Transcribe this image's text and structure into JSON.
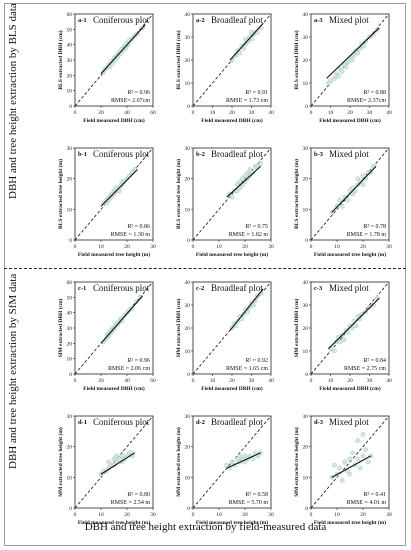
{
  "figure": {
    "side_label_top": "DBH and tree height extraction by BLS data",
    "side_label_bottom": "DBH and tree height extraction by SfM data",
    "bottom_label": "DBH and tree height extraction by field-measured data"
  },
  "chart_data": [
    {
      "id": "a-1",
      "type": "scatter",
      "title": "Coniferous plot",
      "xlabel": "Field measured DBH (cm)",
      "ylabel": "BLS extracted DBH (cm)",
      "xlim": [
        0,
        60
      ],
      "ylim": [
        0,
        60
      ],
      "xticks": [
        0,
        20,
        40,
        60
      ],
      "yticks": [
        0,
        10,
        20,
        30,
        40,
        50,
        60
      ],
      "r2_label": "R² = 0.96",
      "rmse_label": "RMSE= 2.07cm",
      "points": [
        [
          22,
          22
        ],
        [
          23,
          24
        ],
        [
          25,
          25
        ],
        [
          26,
          27
        ],
        [
          27,
          26
        ],
        [
          28,
          29
        ],
        [
          29,
          28
        ],
        [
          30,
          31
        ],
        [
          31,
          30
        ],
        [
          32,
          33
        ],
        [
          33,
          32
        ],
        [
          34,
          35
        ],
        [
          35,
          34
        ],
        [
          36,
          37
        ],
        [
          37,
          36
        ],
        [
          38,
          39
        ],
        [
          39,
          38
        ],
        [
          40,
          41
        ],
        [
          41,
          40
        ],
        [
          42,
          43
        ],
        [
          44,
          44
        ],
        [
          46,
          46
        ],
        [
          48,
          47
        ],
        [
          52,
          51
        ]
      ],
      "fit": [
        [
          20,
          21
        ],
        [
          54,
          53
        ]
      ]
    },
    {
      "id": "a-2",
      "type": "scatter",
      "title": "Broadleaf plot",
      "xlabel": "Field measured DBH (cm)",
      "ylabel": "BLS extracted DBH (cm)",
      "xlim": [
        0,
        40
      ],
      "ylim": [
        0,
        40
      ],
      "xticks": [
        0,
        10,
        20,
        30,
        40
      ],
      "yticks": [
        0,
        10,
        20,
        30,
        40
      ],
      "r2_label": "R² = 0.91",
      "rmse_label": "RMSE = 1.73 cm",
      "points": [
        [
          20,
          20
        ],
        [
          22,
          22
        ],
        [
          23,
          24
        ],
        [
          24,
          23
        ],
        [
          25,
          26
        ],
        [
          26,
          25
        ],
        [
          27,
          27
        ],
        [
          28,
          28
        ],
        [
          29,
          30
        ],
        [
          30,
          29
        ],
        [
          31,
          31
        ],
        [
          32,
          32
        ],
        [
          33,
          32
        ],
        [
          35,
          34
        ],
        [
          30,
          32
        ],
        [
          27,
          29
        ]
      ],
      "fit": [
        [
          19,
          20
        ],
        [
          36,
          36
        ]
      ]
    },
    {
      "id": "a-3",
      "type": "scatter",
      "title": "Mixed plot",
      "xlabel": "Field measured DBH (cm)",
      "ylabel": "BLS extracted DBH (cm)",
      "xlim": [
        0,
        40
      ],
      "ylim": [
        0,
        40
      ],
      "xticks": [
        0,
        10,
        20,
        30,
        40
      ],
      "yticks": [
        0,
        10,
        20,
        30,
        40
      ],
      "r2_label": "R² = 0.88",
      "rmse_label": "RMSE= 2.37cm",
      "points": [
        [
          9,
          10
        ],
        [
          10,
          11
        ],
        [
          12,
          12
        ],
        [
          13,
          14
        ],
        [
          14,
          13
        ],
        [
          15,
          16
        ],
        [
          16,
          15
        ],
        [
          17,
          18
        ],
        [
          18,
          17
        ],
        [
          19,
          19
        ],
        [
          20,
          21
        ],
        [
          21,
          20
        ],
        [
          22,
          22
        ],
        [
          23,
          24
        ],
        [
          24,
          23
        ],
        [
          25,
          25
        ],
        [
          26,
          27
        ],
        [
          27,
          26
        ],
        [
          28,
          28
        ],
        [
          30,
          30
        ],
        [
          32,
          31
        ],
        [
          34,
          33
        ]
      ],
      "fit": [
        [
          8,
          12
        ],
        [
          35,
          34
        ]
      ]
    },
    {
      "id": "b-1",
      "type": "scatter",
      "title": "Coniferous plot",
      "xlabel": "Field measured tree height (m)",
      "ylabel": "BLS extracted tree height (m)",
      "xlim": [
        0,
        30
      ],
      "ylim": [
        0,
        30
      ],
      "xticks": [
        0,
        10,
        20,
        30
      ],
      "yticks": [
        0,
        10,
        20,
        30
      ],
      "r2_label": "R² = 0.86",
      "rmse_label": "RMSE = 1.30 m",
      "points": [
        [
          11,
          12
        ],
        [
          12,
          12
        ],
        [
          12,
          13
        ],
        [
          13,
          13
        ],
        [
          13,
          14
        ],
        [
          14,
          14
        ],
        [
          14,
          15
        ],
        [
          15,
          15
        ],
        [
          15,
          16
        ],
        [
          16,
          16
        ],
        [
          16,
          17
        ],
        [
          17,
          17
        ],
        [
          17,
          16
        ],
        [
          18,
          18
        ],
        [
          18,
          19
        ],
        [
          19,
          19
        ],
        [
          20,
          20
        ],
        [
          21,
          21
        ],
        [
          22,
          22
        ],
        [
          23,
          23
        ]
      ],
      "fit": [
        [
          10,
          11
        ],
        [
          24,
          23
        ]
      ]
    },
    {
      "id": "b-2",
      "type": "scatter",
      "title": "Broadleaf plot",
      "xlabel": "Field measured tree height (m)",
      "ylabel": "BLS extracted tree height (m)",
      "xlim": [
        0,
        30
      ],
      "ylim": [
        0,
        30
      ],
      "xticks": [
        0,
        10,
        20,
        30
      ],
      "yticks": [
        0,
        10,
        20,
        30
      ],
      "r2_label": "R² = 0.75",
      "rmse_label": "RMSE = 1.82 m",
      "points": [
        [
          14,
          15
        ],
        [
          15,
          14
        ],
        [
          16,
          16
        ],
        [
          17,
          16
        ],
        [
          17,
          18
        ],
        [
          18,
          17
        ],
        [
          18,
          19
        ],
        [
          19,
          18
        ],
        [
          19,
          20
        ],
        [
          20,
          19
        ],
        [
          20,
          21
        ],
        [
          21,
          20
        ],
        [
          21,
          22
        ],
        [
          22,
          21
        ],
        [
          22,
          23
        ],
        [
          23,
          22
        ],
        [
          24,
          24
        ],
        [
          25,
          24
        ],
        [
          26,
          25
        ]
      ],
      "fit": [
        [
          13,
          14
        ],
        [
          26,
          24
        ]
      ]
    },
    {
      "id": "b-3",
      "type": "scatter",
      "title": "Mixed plot",
      "xlabel": "Field measured tree height (m)",
      "ylabel": "BLS extracted tree height (m)",
      "xlim": [
        0,
        30
      ],
      "ylim": [
        0,
        30
      ],
      "xticks": [
        0,
        10,
        20,
        30
      ],
      "yticks": [
        0,
        10,
        20,
        30
      ],
      "r2_label": "R² = 0.78",
      "rmse_label": "RMSE = 1.78 m",
      "points": [
        [
          8,
          9
        ],
        [
          10,
          11
        ],
        [
          11,
          13
        ],
        [
          12,
          11
        ],
        [
          13,
          14
        ],
        [
          14,
          13
        ],
        [
          15,
          16
        ],
        [
          16,
          15
        ],
        [
          16,
          17
        ],
        [
          17,
          16
        ],
        [
          18,
          18
        ],
        [
          18,
          20
        ],
        [
          19,
          19
        ],
        [
          20,
          21
        ],
        [
          20,
          18
        ],
        [
          21,
          20
        ],
        [
          22,
          22
        ],
        [
          23,
          22
        ],
        [
          24,
          24
        ]
      ],
      "fit": [
        [
          8,
          9
        ],
        [
          25,
          24
        ]
      ]
    },
    {
      "id": "c-1",
      "type": "scatter",
      "title": "Coniferous plot",
      "xlabel": "Field measured DBH (cm)",
      "ylabel": "SfM extracted DBH (cm)",
      "xlim": [
        0,
        60
      ],
      "ylim": [
        0,
        60
      ],
      "xticks": [
        0,
        20,
        40,
        60
      ],
      "yticks": [
        0,
        10,
        20,
        30,
        40,
        50,
        60
      ],
      "r2_label": "R² = 0.96",
      "rmse_label": "RMSE = 2.06 cm",
      "points": [
        [
          22,
          21
        ],
        [
          24,
          23
        ],
        [
          25,
          26
        ],
        [
          26,
          25
        ],
        [
          27,
          28
        ],
        [
          28,
          27
        ],
        [
          29,
          30
        ],
        [
          30,
          29
        ],
        [
          31,
          31
        ],
        [
          32,
          33
        ],
        [
          33,
          32
        ],
        [
          34,
          34
        ],
        [
          35,
          36
        ],
        [
          36,
          35
        ],
        [
          38,
          38
        ],
        [
          40,
          40
        ],
        [
          42,
          42
        ],
        [
          44,
          43
        ],
        [
          47,
          47
        ],
        [
          50,
          50
        ]
      ],
      "fit": [
        [
          20,
          20
        ],
        [
          52,
          51
        ]
      ]
    },
    {
      "id": "c-2",
      "type": "scatter",
      "title": "Broadleaf plot",
      "xlabel": "Field measured DBH (cm)",
      "ylabel": "SfM extracted DBH (cm)",
      "xlim": [
        0,
        40
      ],
      "ylim": [
        0,
        40
      ],
      "xticks": [
        0,
        10,
        20,
        30,
        40
      ],
      "yticks": [
        0,
        10,
        20,
        30,
        40
      ],
      "r2_label": "R² = 0.92",
      "rmse_label": "RMSE = 1.65 cm",
      "points": [
        [
          20,
          20
        ],
        [
          21,
          22
        ],
        [
          22,
          21
        ],
        [
          23,
          23
        ],
        [
          24,
          25
        ],
        [
          25,
          24
        ],
        [
          26,
          26
        ],
        [
          27,
          28
        ],
        [
          28,
          27
        ],
        [
          29,
          29
        ],
        [
          30,
          31
        ],
        [
          31,
          30
        ],
        [
          32,
          32
        ],
        [
          33,
          34
        ],
        [
          35,
          35
        ]
      ],
      "fit": [
        [
          19,
          19
        ],
        [
          36,
          37
        ]
      ]
    },
    {
      "id": "c-3",
      "type": "scatter",
      "title": "Mixed plot",
      "xlabel": "Field measured DBH (cm)",
      "ylabel": "SfM extracted DBH (cm)",
      "xlim": [
        0,
        40
      ],
      "ylim": [
        0,
        40
      ],
      "xticks": [
        0,
        10,
        20,
        30,
        40
      ],
      "yticks": [
        0,
        10,
        20,
        30,
        40
      ],
      "r2_label": "R² = 0.84",
      "rmse_label": "RMSE = 2.75 cm",
      "points": [
        [
          10,
          11
        ],
        [
          12,
          10
        ],
        [
          13,
          14
        ],
        [
          14,
          16
        ],
        [
          15,
          14
        ],
        [
          16,
          17
        ],
        [
          17,
          15
        ],
        [
          18,
          19
        ],
        [
          19,
          18
        ],
        [
          20,
          21
        ],
        [
          21,
          20
        ],
        [
          22,
          23
        ],
        [
          23,
          21
        ],
        [
          24,
          25
        ],
        [
          25,
          24
        ],
        [
          26,
          26
        ],
        [
          28,
          27
        ],
        [
          30,
          29
        ],
        [
          32,
          30
        ],
        [
          34,
          33
        ]
      ],
      "fit": [
        [
          9,
          11
        ],
        [
          35,
          33
        ]
      ]
    },
    {
      "id": "d-1",
      "type": "scatter",
      "title": "Coniferous plot",
      "xlabel": "Field measured tree height (m)",
      "ylabel": "SfM extracted tree height (m)",
      "xlim": [
        0,
        30
      ],
      "ylim": [
        0,
        30
      ],
      "xticks": [
        0,
        10,
        20,
        30
      ],
      "yticks": [
        0,
        10,
        20,
        30
      ],
      "r2_label": "R² = 0.80",
      "rmse_label": "RMSE = 2.54 m",
      "points": [
        [
          10,
          11
        ],
        [
          11,
          12
        ],
        [
          12,
          12
        ],
        [
          13,
          13
        ],
        [
          13,
          15
        ],
        [
          14,
          14
        ],
        [
          15,
          14
        ],
        [
          15,
          16
        ],
        [
          16,
          15
        ],
        [
          16,
          17
        ],
        [
          17,
          16
        ],
        [
          18,
          15
        ],
        [
          18,
          17
        ],
        [
          19,
          16
        ],
        [
          20,
          17
        ],
        [
          21,
          18
        ],
        [
          22,
          18
        ],
        [
          22,
          17
        ]
      ],
      "fit": [
        [
          10,
          11
        ],
        [
          23,
          18
        ]
      ]
    },
    {
      "id": "d-2",
      "type": "scatter",
      "title": "Broadleaf plot",
      "xlabel": "Field measured tree height (m)",
      "ylabel": "SfM extracted tree height (m)",
      "xlim": [
        0,
        30
      ],
      "ylim": [
        0,
        30
      ],
      "xticks": [
        0,
        10,
        20,
        30
      ],
      "yticks": [
        0,
        10,
        20,
        30
      ],
      "r2_label": "R² = 0.58",
      "rmse_label": "RMSE = 5.70 m",
      "points": [
        [
          13,
          14
        ],
        [
          14,
          13
        ],
        [
          15,
          15
        ],
        [
          16,
          14
        ],
        [
          17,
          16
        ],
        [
          18,
          15
        ],
        [
          18,
          17
        ],
        [
          19,
          16
        ],
        [
          20,
          17
        ],
        [
          20,
          15
        ],
        [
          21,
          16
        ],
        [
          22,
          17
        ],
        [
          23,
          16
        ],
        [
          24,
          18
        ],
        [
          25,
          17
        ],
        [
          26,
          18
        ]
      ],
      "fit": [
        [
          13,
          13
        ],
        [
          26,
          18
        ]
      ]
    },
    {
      "id": "d-3",
      "type": "scatter",
      "title": "Mixed plot",
      "xlabel": "Field measured tree height (m)",
      "ylabel": "SfM extracted tree height (m)",
      "xlim": [
        0,
        30
      ],
      "ylim": [
        0,
        30
      ],
      "xticks": [
        0,
        10,
        20,
        30
      ],
      "yticks": [
        0,
        10,
        20,
        30
      ],
      "r2_label": "R² = 0.41",
      "rmse_label": "RMSE = 4.01 m",
      "points": [
        [
          8,
          10
        ],
        [
          9,
          14
        ],
        [
          10,
          11
        ],
        [
          11,
          13
        ],
        [
          12,
          9
        ],
        [
          13,
          15
        ],
        [
          14,
          12
        ],
        [
          15,
          16
        ],
        [
          15,
          11
        ],
        [
          16,
          18
        ],
        [
          17,
          14
        ],
        [
          18,
          22
        ],
        [
          18,
          16
        ],
        [
          19,
          13
        ],
        [
          20,
          17
        ],
        [
          21,
          19
        ],
        [
          22,
          15
        ],
        [
          20,
          24
        ],
        [
          23,
          17
        ]
      ],
      "fit": [
        [
          8,
          10
        ],
        [
          23,
          17
        ]
      ]
    }
  ],
  "colors": {
    "point_fill": "#cfe6de",
    "point_stroke": "#9cc7b8",
    "fit_line": "#111111",
    "diag_line": "#111111"
  }
}
